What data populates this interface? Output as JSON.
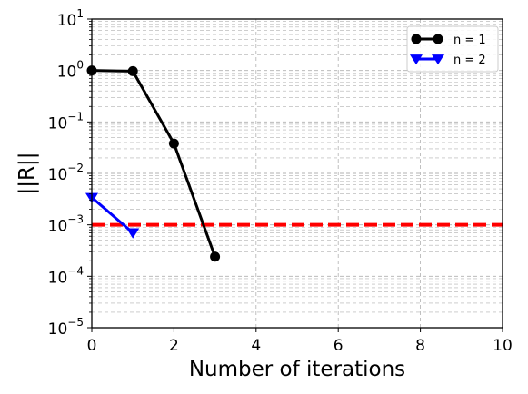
{
  "chart_data": {
    "type": "line",
    "title": "",
    "xlabel": "Number of iterations",
    "ylabel": "||R||",
    "xlim": [
      0,
      10
    ],
    "ylim": [
      1e-05,
      10
    ],
    "yscale": "log",
    "grid": true,
    "legend_position": "top-right",
    "x_ticks": [
      {
        "value": 0,
        "label": "0"
      },
      {
        "value": 2,
        "label": "2"
      },
      {
        "value": 4,
        "label": "4"
      },
      {
        "value": 6,
        "label": "6"
      },
      {
        "value": 8,
        "label": "8"
      },
      {
        "value": 10,
        "label": "10"
      }
    ],
    "y_ticks": [
      {
        "value": 1e-05,
        "base": "10",
        "exp": "−5"
      },
      {
        "value": 0.0001,
        "base": "10",
        "exp": "−4"
      },
      {
        "value": 0.001,
        "base": "10",
        "exp": "−3"
      },
      {
        "value": 0.01,
        "base": "10",
        "exp": "−2"
      },
      {
        "value": 0.1,
        "base": "10",
        "exp": "−1"
      },
      {
        "value": 1,
        "base": "10",
        "exp": "0"
      },
      {
        "value": 10,
        "base": "10",
        "exp": "1"
      }
    ],
    "series": [
      {
        "name": "n = 1",
        "color": "#000000",
        "marker": "circle",
        "x": [
          0,
          1,
          2,
          3
        ],
        "y": [
          1.0,
          0.97,
          0.038,
          0.00024
        ]
      },
      {
        "name": "n = 2",
        "color": "#0000ff",
        "marker": "triangle-down",
        "x": [
          0,
          1
        ],
        "y": [
          0.0034,
          0.0007
        ]
      }
    ],
    "threshold": {
      "y": 0.001,
      "color": "#ff0000",
      "style": "dashed"
    }
  }
}
